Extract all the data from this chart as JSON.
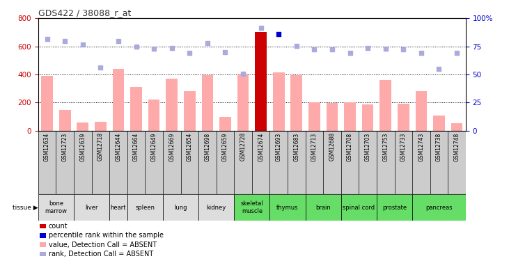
{
  "title": "GDS422 / 38088_r_at",
  "samples": [
    "GSM12634",
    "GSM12723",
    "GSM12639",
    "GSM12718",
    "GSM12644",
    "GSM12664",
    "GSM12649",
    "GSM12669",
    "GSM12654",
    "GSM12698",
    "GSM12659",
    "GSM12728",
    "GSM12674",
    "GSM12693",
    "GSM12683",
    "GSM12713",
    "GSM12688",
    "GSM12708",
    "GSM12703",
    "GSM12753",
    "GSM12733",
    "GSM12743",
    "GSM12738",
    "GSM12748"
  ],
  "tissues": [
    {
      "name": "bone\nmarrow",
      "spans": [
        0,
        1
      ],
      "green": false
    },
    {
      "name": "liver",
      "spans": [
        2,
        3
      ],
      "green": false
    },
    {
      "name": "heart",
      "spans": [
        4,
        4
      ],
      "green": false
    },
    {
      "name": "spleen",
      "spans": [
        5,
        6
      ],
      "green": false
    },
    {
      "name": "lung",
      "spans": [
        7,
        8
      ],
      "green": false
    },
    {
      "name": "kidney",
      "spans": [
        9,
        10
      ],
      "green": false
    },
    {
      "name": "skeletal\nmuscle",
      "spans": [
        11,
        12
      ],
      "green": true
    },
    {
      "name": "thymus",
      "spans": [
        13,
        14
      ],
      "green": true
    },
    {
      "name": "brain",
      "spans": [
        15,
        16
      ],
      "green": true
    },
    {
      "name": "spinal cord",
      "spans": [
        17,
        18
      ],
      "green": true
    },
    {
      "name": "prostate",
      "spans": [
        19,
        20
      ],
      "green": true
    },
    {
      "name": "pancreas",
      "spans": [
        21,
        23
      ],
      "green": true
    }
  ],
  "bar_values": [
    390,
    145,
    55,
    60,
    440,
    310,
    220,
    370,
    280,
    395,
    95,
    405,
    700,
    415,
    395,
    200,
    195,
    200,
    185,
    360,
    190,
    280,
    105,
    50
  ],
  "rank_values": [
    650,
    640,
    615,
    450,
    640,
    600,
    585,
    590,
    555,
    625,
    560,
    405,
    730,
    685,
    605,
    580,
    580,
    555,
    590,
    585,
    580,
    555,
    440,
    555
  ],
  "highlight_bar_idx": 12,
  "highlight_rank_idx": 13,
  "ylim_left": [
    0,
    800
  ],
  "ylim_right": [
    0,
    100
  ],
  "yticks_left": [
    0,
    200,
    400,
    600,
    800
  ],
  "yticks_right": [
    0,
    25,
    50,
    75,
    100
  ],
  "bar_color_normal": "#ffaaaa",
  "bar_color_highlight": "#cc0000",
  "rank_color_normal": "#aaaadd",
  "rank_color_highlight": "#0000cc",
  "title_color": "#333333",
  "left_tick_color": "#cc0000",
  "right_tick_color": "#0000cc",
  "legend_items": [
    {
      "color": "#cc0000",
      "label": "count"
    },
    {
      "color": "#0000cc",
      "label": "percentile rank within the sample"
    },
    {
      "color": "#ffaaaa",
      "label": "value, Detection Call = ABSENT"
    },
    {
      "color": "#aaaadd",
      "label": "rank, Detection Call = ABSENT"
    }
  ],
  "sample_bg_color": "#cccccc",
  "tissue_gray_color": "#dddddd",
  "tissue_green_color": "#66dd66",
  "grid_line_values": [
    200,
    400,
    600
  ]
}
